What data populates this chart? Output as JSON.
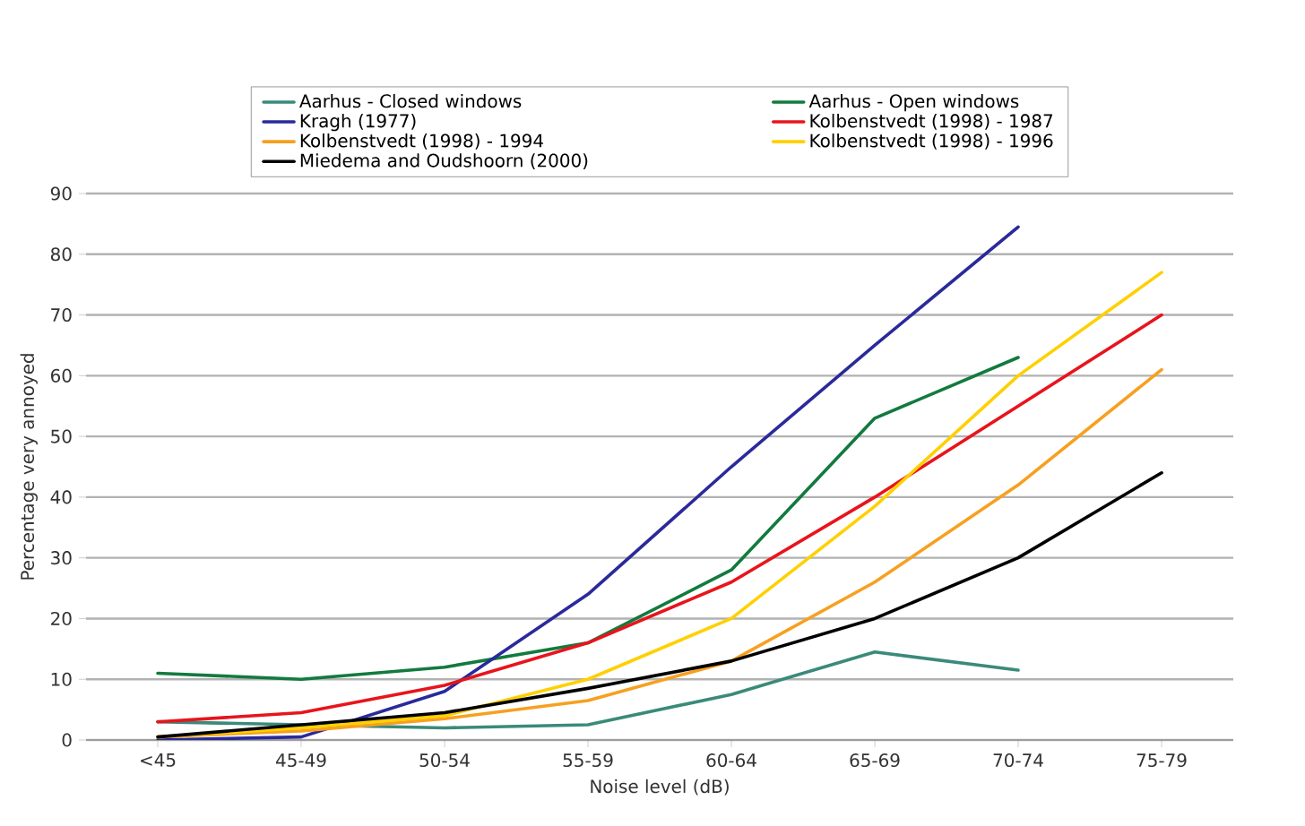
{
  "chart_data": {
    "type": "line",
    "xlabel": "Noise level (dB)",
    "ylabel": "Percentage very annoyed",
    "categories": [
      "<45",
      "45-49",
      "50-54",
      "55-59",
      "60-64",
      "65-69",
      "70-74",
      "75-79"
    ],
    "series": [
      {
        "name": "Aarhus - Closed windows",
        "color": "#3a8a7a",
        "values": [
          3,
          2.5,
          2,
          2.5,
          7.5,
          14.5,
          11.5,
          null
        ]
      },
      {
        "name": "Aarhus - Open windows",
        "color": "#127a3e",
        "values": [
          11,
          10,
          12,
          16,
          28,
          53,
          63,
          null
        ]
      },
      {
        "name": "Kragh (1977)",
        "color": "#2a2a9a",
        "values": [
          0,
          0.5,
          8,
          24,
          45,
          65,
          84.5,
          null
        ]
      },
      {
        "name": "Kolbenstvedt (1998) - 1987",
        "color": "#e8141c",
        "values": [
          3,
          4.5,
          9,
          16,
          26,
          40,
          55,
          70
        ]
      },
      {
        "name": "Kolbenstvedt (1998) - 1994",
        "color": "#f7a020",
        "values": [
          0.5,
          1.5,
          3.5,
          6.5,
          13,
          26,
          42,
          61
        ]
      },
      {
        "name": "Kolbenstvedt (1998) - 1996",
        "color": "#ffd000",
        "values": [
          0.5,
          2,
          4,
          10,
          20,
          38.5,
          60,
          77
        ]
      },
      {
        "name": "Miedema and Oudshoorn (2000)",
        "color": "#000000",
        "values": [
          0.5,
          2.5,
          4.5,
          8.5,
          13,
          20,
          30,
          44
        ]
      }
    ],
    "ylim": [
      0,
      90
    ],
    "yticks": [
      0,
      10,
      20,
      30,
      40,
      50,
      60,
      70,
      80,
      90
    ],
    "grid": "y",
    "legend": "top",
    "marker": "none",
    "line_style": "solid"
  }
}
